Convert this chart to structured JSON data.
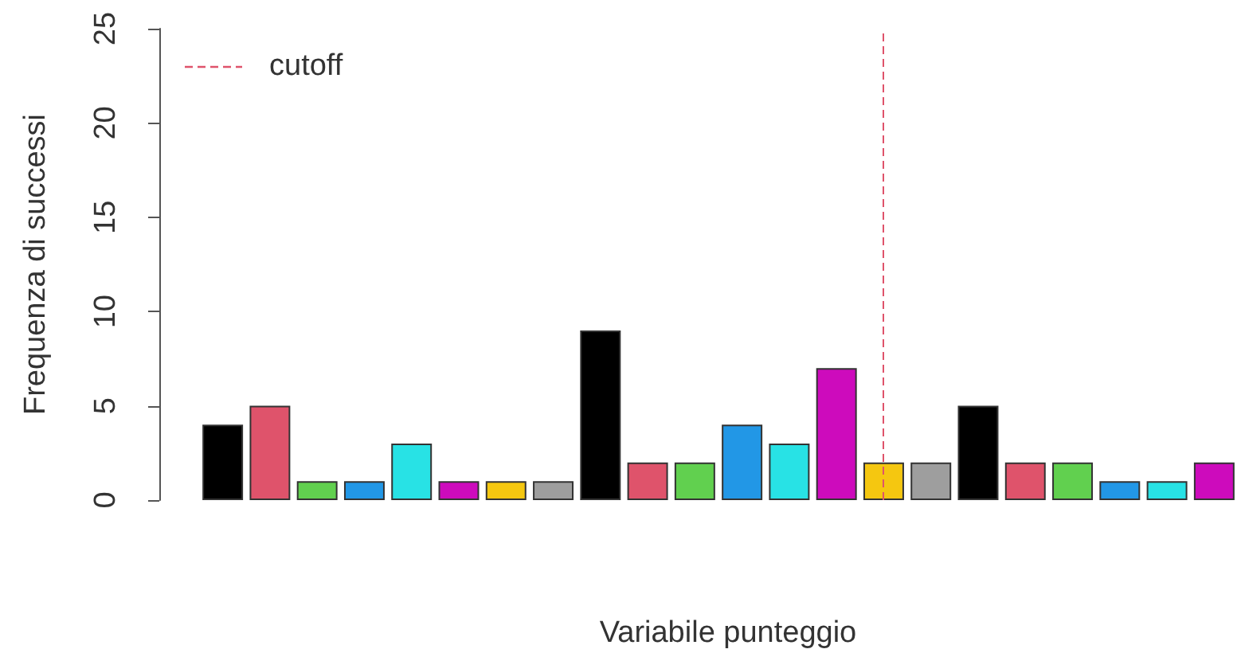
{
  "chart_data": {
    "type": "bar",
    "xlabel": "Variabile punteggio",
    "ylabel": "Frequenza di successi",
    "categories": [
      null,
      null,
      null,
      null,
      null,
      null,
      null,
      null,
      null,
      null,
      null,
      null,
      null,
      null,
      null,
      null,
      null,
      null,
      null,
      null,
      null,
      null
    ],
    "values": [
      4,
      5,
      1,
      1,
      3,
      1,
      1,
      1,
      9,
      2,
      2,
      4,
      3,
      7,
      2,
      2,
      5,
      2,
      2,
      1,
      1,
      2
    ],
    "colors": [
      "#000000",
      "#df536b",
      "#61d04f",
      "#2297e6",
      "#28e2e5",
      "#cd0bbc",
      "#f5c710",
      "#9e9e9e",
      "#000000",
      "#df536b",
      "#61d04f",
      "#2297e6",
      "#28e2e5",
      "#cd0bbc",
      "#f5c710",
      "#9e9e9e",
      "#000000",
      "#df536b",
      "#61d04f",
      "#2297e6",
      "#28e2e5",
      "#cd0bbc"
    ],
    "ylim": [
      0,
      25
    ],
    "yticks": [
      0,
      5,
      10,
      15,
      20,
      25
    ],
    "annotations": [
      "cutoff"
    ],
    "grid": false
  }
}
